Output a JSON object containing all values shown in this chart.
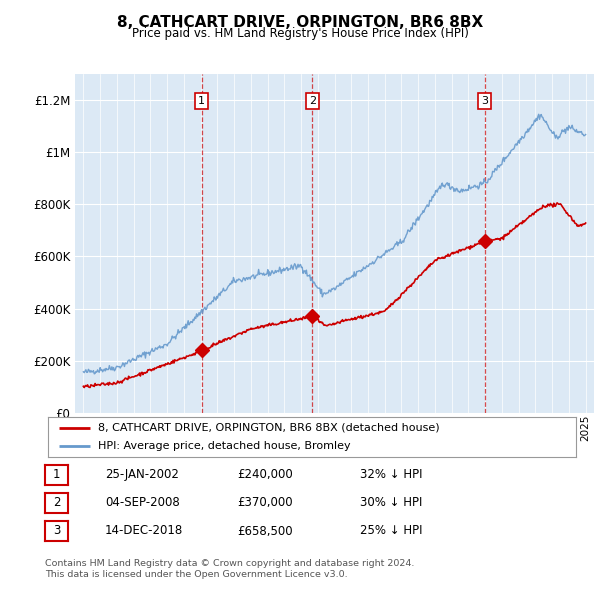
{
  "title": "8, CATHCART DRIVE, ORPINGTON, BR6 8BX",
  "subtitle": "Price paid vs. HM Land Registry's House Price Index (HPI)",
  "background_color": "#dce9f5",
  "plot_bg_color": "#dce9f5",
  "y_ticks": [
    0,
    200000,
    400000,
    600000,
    800000,
    1000000,
    1200000
  ],
  "y_tick_labels": [
    "£0",
    "£200K",
    "£400K",
    "£600K",
    "£800K",
    "£1M",
    "£1.2M"
  ],
  "ylim": [
    0,
    1300000
  ],
  "purchases": [
    {
      "date_num": 2002.07,
      "price": 240000,
      "label": "1"
    },
    {
      "date_num": 2008.67,
      "price": 370000,
      "label": "2"
    },
    {
      "date_num": 2018.96,
      "price": 658500,
      "label": "3"
    }
  ],
  "vline_dates": [
    2002.07,
    2008.67,
    2018.96
  ],
  "legend_entries": [
    "8, CATHCART DRIVE, ORPINGTON, BR6 8BX (detached house)",
    "HPI: Average price, detached house, Bromley"
  ],
  "table_rows": [
    {
      "num": "1",
      "date": "25-JAN-2002",
      "price": "£240,000",
      "hpi": "32% ↓ HPI"
    },
    {
      "num": "2",
      "date": "04-SEP-2008",
      "price": "£370,000",
      "hpi": "30% ↓ HPI"
    },
    {
      "num": "3",
      "date": "14-DEC-2018",
      "price": "£658,500",
      "hpi": "25% ↓ HPI"
    }
  ],
  "footer": "Contains HM Land Registry data © Crown copyright and database right 2024.\nThis data is licensed under the Open Government Licence v3.0.",
  "red_color": "#cc0000",
  "blue_color": "#6699cc",
  "figsize": [
    6.0,
    5.9
  ],
  "dpi": 100
}
